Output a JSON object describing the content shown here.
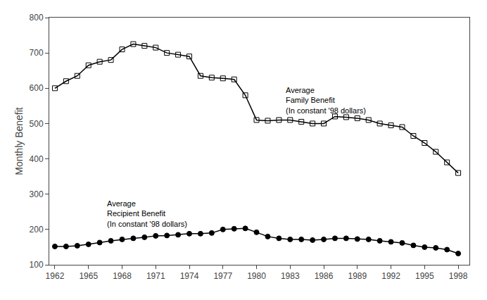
{
  "chart_data": {
    "type": "line",
    "ylabel": "Monthly Benefit",
    "x": [
      1962,
      1963,
      1964,
      1965,
      1966,
      1967,
      1968,
      1969,
      1970,
      1971,
      1972,
      1973,
      1974,
      1975,
      1976,
      1977,
      1978,
      1979,
      1980,
      1981,
      1982,
      1983,
      1984,
      1985,
      1986,
      1987,
      1988,
      1989,
      1990,
      1991,
      1992,
      1993,
      1994,
      1995,
      1996,
      1997,
      1998
    ],
    "series": [
      {
        "color": "#000000",
        "marker": "square-open",
        "values": [
          600,
          620,
          635,
          665,
          675,
          680,
          710,
          725,
          720,
          715,
          700,
          695,
          690,
          635,
          630,
          628,
          625,
          580,
          510,
          508,
          510,
          510,
          505,
          500,
          500,
          520,
          518,
          515,
          510,
          500,
          495,
          490,
          465,
          445,
          420,
          390,
          360
        ]
      },
      {
        "color": "#000000",
        "marker": "circle",
        "values": [
          152,
          152,
          154,
          158,
          163,
          168,
          172,
          175,
          178,
          182,
          183,
          185,
          188,
          188,
          190,
          200,
          202,
          203,
          192,
          180,
          175,
          172,
          172,
          170,
          172,
          175,
          175,
          173,
          172,
          168,
          165,
          162,
          155,
          150,
          148,
          143,
          132
        ]
      }
    ],
    "annotations": [
      {
        "text": "Average\nFamily Benefit\n(In constant '98 dollars)",
        "x": 1982.5,
        "y": 610
      },
      {
        "text": "Average\nRecipient Benefit\n(In constant '98 dollars)",
        "x": 1966.5,
        "y": 290
      }
    ],
    "xlim": [
      1961.5,
      1999
    ],
    "xticks": [
      1962,
      1965,
      1968,
      1971,
      1974,
      1977,
      1980,
      1983,
      1986,
      1989,
      1992,
      1995,
      1998
    ],
    "ylim": [
      100,
      800
    ],
    "yticks": [
      100,
      200,
      300,
      400,
      500,
      600,
      700,
      800
    ],
    "grid": false
  }
}
